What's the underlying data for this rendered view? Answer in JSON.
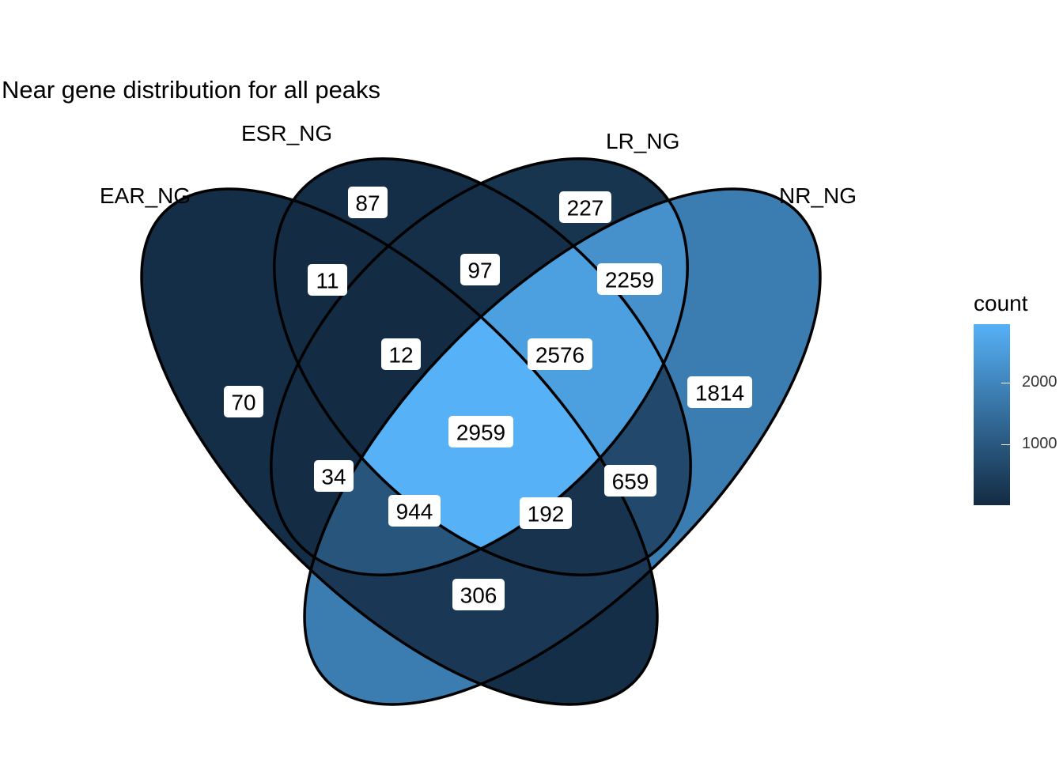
{
  "title": "Near gene distribution for all peaks",
  "sets": [
    {
      "id": "EAR",
      "label": "EAR_NG"
    },
    {
      "id": "ESR",
      "label": "ESR_NG"
    },
    {
      "id": "LR",
      "label": "LR_NG"
    },
    {
      "id": "NR",
      "label": "NR_NG"
    }
  ],
  "regions": [
    {
      "sets": [
        "EAR"
      ],
      "count": 70
    },
    {
      "sets": [
        "ESR"
      ],
      "count": 87
    },
    {
      "sets": [
        "LR"
      ],
      "count": 227
    },
    {
      "sets": [
        "NR"
      ],
      "count": 1814
    },
    {
      "sets": [
        "EAR",
        "ESR"
      ],
      "count": 11
    },
    {
      "sets": [
        "ESR",
        "LR"
      ],
      "count": 97
    },
    {
      "sets": [
        "LR",
        "NR"
      ],
      "count": 2259
    },
    {
      "sets": [
        "EAR",
        "NR"
      ],
      "count": 306
    },
    {
      "sets": [
        "EAR",
        "LR"
      ],
      "count": 34
    },
    {
      "sets": [
        "ESR",
        "NR"
      ],
      "count": 659
    },
    {
      "sets": [
        "EAR",
        "ESR",
        "LR"
      ],
      "count": 12
    },
    {
      "sets": [
        "ESR",
        "LR",
        "NR"
      ],
      "count": 2576
    },
    {
      "sets": [
        "EAR",
        "LR",
        "NR"
      ],
      "count": 944
    },
    {
      "sets": [
        "EAR",
        "ESR",
        "NR"
      ],
      "count": 192
    },
    {
      "sets": [
        "EAR",
        "ESR",
        "LR",
        "NR"
      ],
      "count": 2959
    }
  ],
  "legend": {
    "title": "count",
    "ticks": [
      {
        "value": 1000,
        "label": "1000"
      },
      {
        "value": 2000,
        "label": "2000"
      }
    ],
    "min": 11,
    "max": 2959,
    "low_color": "#132b43",
    "high_color": "#56b1f7"
  }
}
